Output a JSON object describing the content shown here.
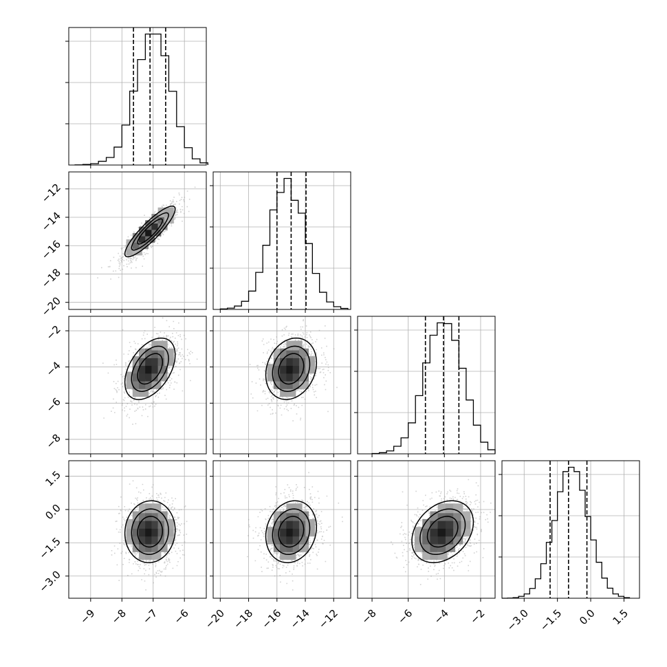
{
  "chart_data": {
    "type": "corner",
    "grid": true,
    "parameters": [
      {
        "range": [
          -9.7,
          -5.3
        ],
        "ticks": [
          -9,
          -8,
          -7,
          -6
        ],
        "tick_labels": [
          "−9",
          "−8",
          "−7",
          "−6"
        ],
        "mean": -7.1,
        "std": 0.45,
        "quantiles": [
          -7.63,
          -7.1,
          -6.6
        ],
        "hist_edges": [
          -9.5,
          -9.25,
          -9.0,
          -8.75,
          -8.5,
          -8.25,
          -8.0,
          -7.75,
          -7.5,
          -7.25,
          -7.0,
          -6.75,
          -6.5,
          -6.25,
          -6.0,
          -5.75,
          -5.5,
          -5.25
        ],
        "hist_counts": [
          1,
          4,
          10,
          27,
          55,
          130,
          290,
          536,
          765,
          950,
          950,
          793,
          535,
          278,
          126,
          45,
          16
        ]
      },
      {
        "range": [
          -20.5,
          -10.8
        ],
        "ticks": [
          -20,
          -18,
          -16,
          -14,
          -12
        ],
        "tick_labels": [
          "−20",
          "−18",
          "−16",
          "−14",
          "−12"
        ],
        "mean": -15.0,
        "std": 1.0,
        "quantiles": [
          -16.0,
          -15.0,
          -13.95
        ],
        "hist_edges": [
          -20.0,
          -19.5,
          -19.0,
          -18.5,
          -18.0,
          -17.5,
          -17.0,
          -16.5,
          -16.0,
          -15.5,
          -15.0,
          -14.5,
          -14.0,
          -13.5,
          -13.0,
          -12.5,
          -12.0,
          -11.5,
          -11.0
        ],
        "hist_counts": [
          4,
          10,
          26,
          62,
          140,
          283,
          490,
          760,
          893,
          1000,
          833,
          735,
          503,
          275,
          131,
          57,
          21,
          8
        ]
      },
      {
        "range": [
          -8.8,
          -1.2
        ],
        "ticks": [
          -8,
          -6,
          -4,
          -2
        ],
        "tick_labels": [
          "−8",
          "−6",
          "−4",
          "−2"
        ],
        "mean": -4.1,
        "std": 0.95,
        "quantiles": [
          -5.05,
          -4.05,
          -3.2
        ],
        "hist_edges": [
          -8.0,
          -7.6,
          -7.2,
          -6.8,
          -6.4,
          -6.0,
          -5.6,
          -5.2,
          -4.8,
          -4.4,
          -4.0,
          -3.6,
          -3.2,
          -2.8,
          -2.4,
          -2.0,
          -1.6,
          -1.2
        ],
        "hist_counts": [
          2,
          8,
          20,
          52,
          110,
          213,
          400,
          625,
          815,
          900,
          895,
          780,
          588,
          370,
          197,
          80,
          28
        ]
      },
      {
        "range": [
          -4.0,
          2.2
        ],
        "ticks": [
          -3.0,
          -1.5,
          0.0,
          1.5
        ],
        "tick_labels": [
          "−3.0",
          "−1.5",
          "0.0",
          "1.5"
        ],
        "mean": -1.0,
        "std": 0.78,
        "quantiles": [
          -1.83,
          -1.0,
          -0.17
        ],
        "hist_edges": [
          -4.0,
          -3.75,
          -3.5,
          -3.25,
          -3.0,
          -2.75,
          -2.5,
          -2.25,
          -2.0,
          -1.75,
          -1.5,
          -1.25,
          -1.0,
          -0.75,
          -0.5,
          -0.25,
          0.0,
          0.25,
          0.5,
          0.75,
          1.0,
          1.25,
          1.5,
          1.75
        ],
        "hist_counts": [
          0,
          1,
          4,
          13,
          30,
          68,
          135,
          240,
          388,
          540,
          740,
          880,
          910,
          880,
          750,
          568,
          405,
          250,
          140,
          70,
          30,
          13,
          4
        ]
      }
    ],
    "correlations": {
      "1-0": 0.88,
      "2-0": 0.45,
      "2-1": 0.2,
      "3-0": 0.05,
      "3-1": 0.15,
      "3-2": 0.3
    },
    "contour_levels": [
      0.393,
      0.865,
      1.6
    ]
  }
}
